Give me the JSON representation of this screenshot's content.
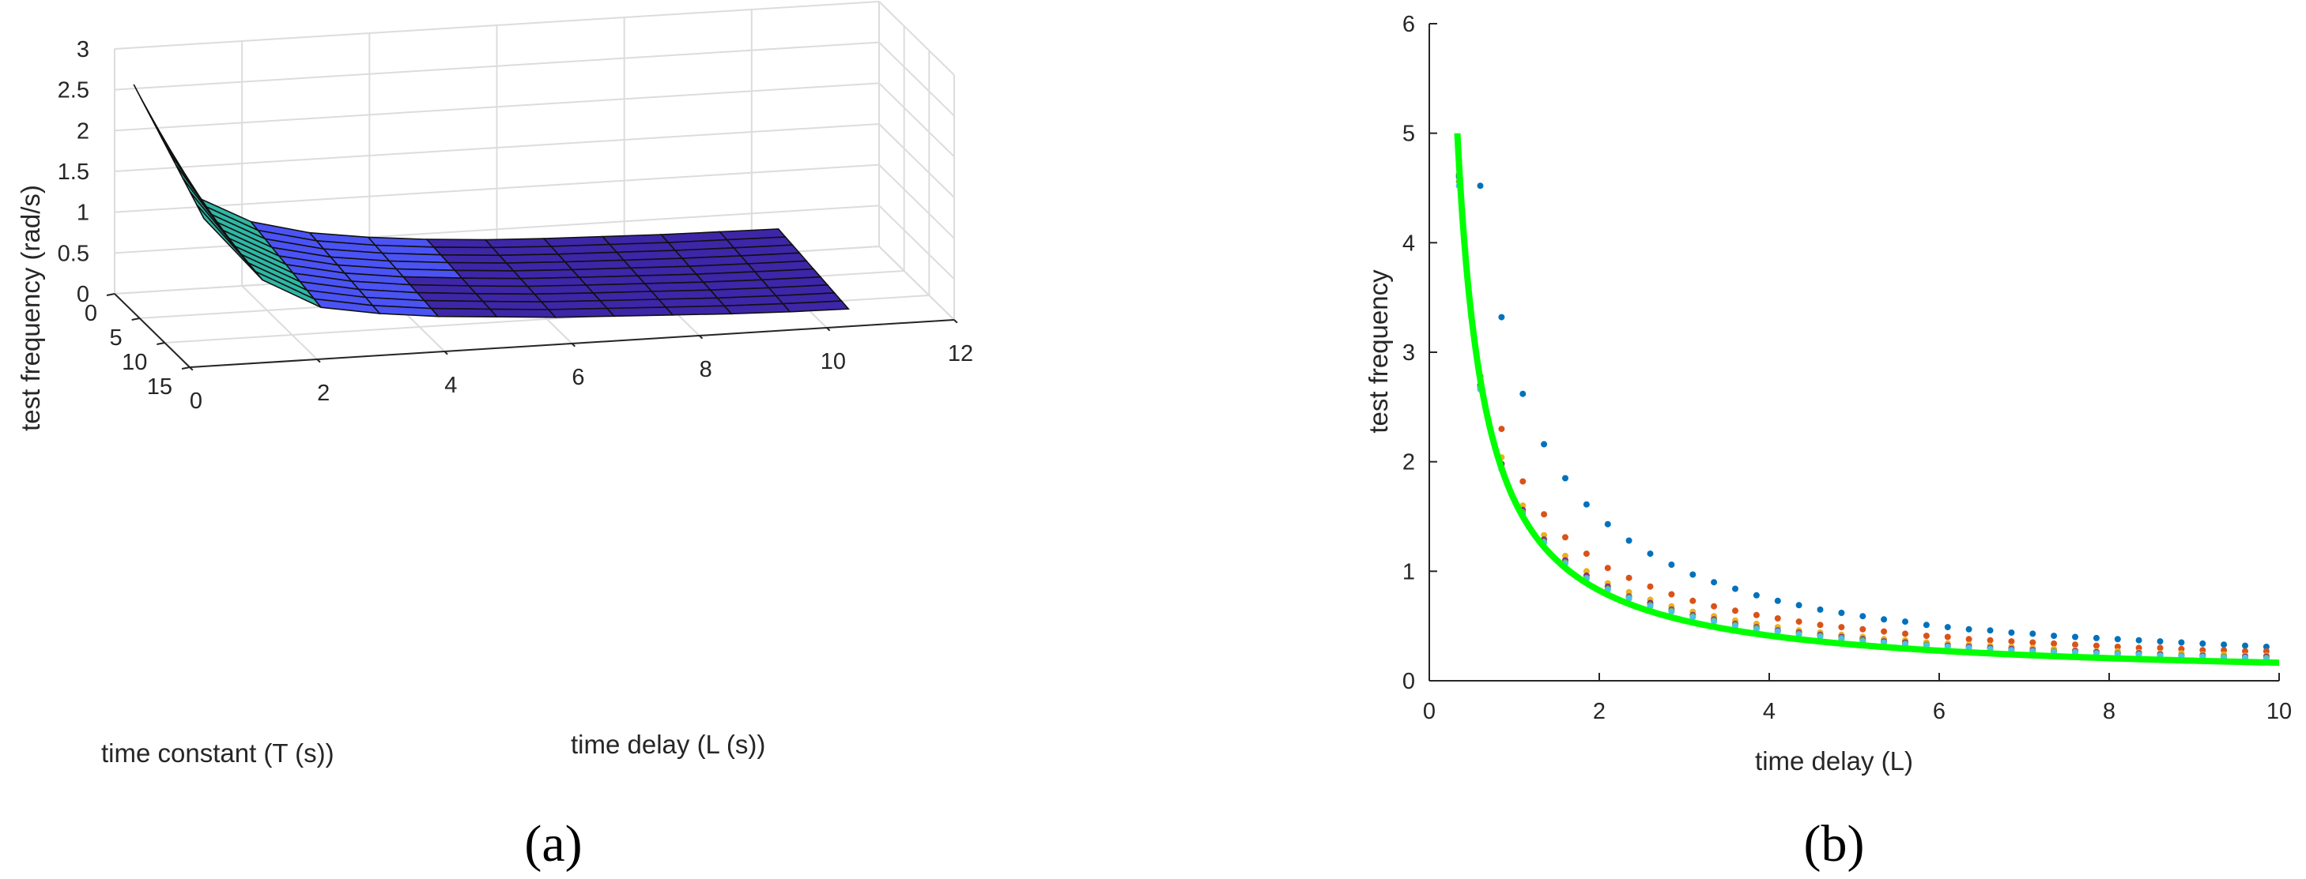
{
  "chart_data": [
    {
      "type": "surface",
      "caption": "(a)",
      "xlabel": "time delay (L (s))",
      "ylabel": "time constant (T (s))",
      "zlabel": "test frequency (rad/s)",
      "xlim": [
        0,
        12
      ],
      "ylim": [
        0,
        15
      ],
      "zlim": [
        0,
        3
      ],
      "xticks": [
        "0",
        "2",
        "4",
        "6",
        "8",
        "10",
        "12"
      ],
      "yticks": [
        "0",
        "5",
        "10",
        "15"
      ],
      "zticks": [
        "0",
        "0.5",
        "1",
        "1.5",
        "2",
        "2.5",
        "3"
      ],
      "grid": true,
      "colormap": [
        "#3e26a8",
        "#4b53f5",
        "#2eb7a4",
        "#f8fa0d"
      ],
      "surface": {
        "L": [
          0.3,
          1.22,
          2.14,
          3.06,
          3.98,
          4.9,
          5.82,
          6.74,
          7.66,
          8.58,
          9.5,
          10.42
        ],
        "T": [
          0,
          1.4,
          2.8,
          4.2,
          5.6,
          7.0,
          8.4,
          9.8,
          11.2,
          12.6,
          14.0
        ],
        "freq_at_T0": [
          2.55,
          1.15,
          0.78,
          0.6,
          0.5,
          0.43,
          0.38,
          0.35,
          0.33,
          0.31,
          0.3,
          0.29
        ],
        "freq_at_T14": [
          1.75,
          0.95,
          0.57,
          0.45,
          0.37,
          0.32,
          0.27,
          0.24,
          0.21,
          0.18,
          0.16,
          0.15
        ]
      }
    },
    {
      "type": "scatter",
      "caption": "(b)",
      "xlabel": "time delay (L)",
      "ylabel": "test frequency",
      "xlim": [
        0,
        10
      ],
      "ylim": [
        0,
        6
      ],
      "xticks": [
        "0",
        "2",
        "4",
        "6",
        "8",
        "10"
      ],
      "yticks": [
        "0",
        "1",
        "2",
        "3",
        "4",
        "5",
        "6"
      ],
      "x": [
        0.35,
        0.6,
        0.85,
        1.1,
        1.35,
        1.6,
        1.85,
        2.1,
        2.35,
        2.6,
        2.85,
        3.1,
        3.35,
        3.6,
        3.85,
        4.1,
        4.35,
        4.6,
        4.85,
        5.1,
        5.35,
        5.6,
        5.85,
        6.1,
        6.35,
        6.6,
        6.85,
        7.1,
        7.35,
        7.6,
        7.85,
        8.1,
        8.35,
        8.6,
        8.85,
        9.1,
        9.35,
        9.6,
        9.85
      ],
      "series": [
        {
          "color": "#0072bd",
          "values": [
            4.6,
            4.52,
            3.32,
            2.62,
            2.16,
            1.85,
            1.61,
            1.43,
            1.28,
            1.16,
            1.06,
            0.97,
            0.9,
            0.84,
            0.78,
            0.73,
            0.69,
            0.65,
            0.62,
            0.59,
            0.56,
            0.54,
            0.51,
            0.49,
            0.47,
            0.46,
            0.44,
            0.43,
            0.41,
            0.4,
            0.39,
            0.38,
            0.37,
            0.36,
            0.35,
            0.34,
            0.33,
            0.32,
            0.31
          ]
        },
        {
          "color": "#d95319",
          "values": [
            4.75,
            2.78,
            2.3,
            1.82,
            1.52,
            1.31,
            1.16,
            1.03,
            0.94,
            0.86,
            0.79,
            0.73,
            0.68,
            0.64,
            0.6,
            0.57,
            0.54,
            0.51,
            0.49,
            0.47,
            0.45,
            0.43,
            0.41,
            0.4,
            0.38,
            0.37,
            0.36,
            0.35,
            0.34,
            0.33,
            0.32,
            0.31,
            0.3,
            0.3,
            0.29,
            0.28,
            0.28,
            0.27,
            0.27
          ]
        },
        {
          "color": "#edb120",
          "values": [
            4.7,
            2.74,
            2.04,
            1.6,
            1.33,
            1.14,
            1.0,
            0.89,
            0.81,
            0.74,
            0.68,
            0.63,
            0.59,
            0.55,
            0.52,
            0.49,
            0.46,
            0.44,
            0.42,
            0.4,
            0.38,
            0.37,
            0.35,
            0.34,
            0.33,
            0.32,
            0.31,
            0.3,
            0.29,
            0.28,
            0.27,
            0.27,
            0.26,
            0.25,
            0.25,
            0.24,
            0.24,
            0.23,
            0.23
          ]
        },
        {
          "color": "#7e2f8e",
          "values": [
            4.62,
            2.7,
            1.98,
            1.56,
            1.29,
            1.1,
            0.96,
            0.86,
            0.77,
            0.71,
            0.65,
            0.6,
            0.56,
            0.52,
            0.49,
            0.46,
            0.44,
            0.42,
            0.4,
            0.38,
            0.36,
            0.35,
            0.33,
            0.32,
            0.31,
            0.3,
            0.29,
            0.28,
            0.27,
            0.27,
            0.26,
            0.25,
            0.25,
            0.24,
            0.23,
            0.23,
            0.22,
            0.22,
            0.22
          ]
        },
        {
          "color": "#77ac30",
          "values": [
            4.56,
            2.68,
            1.95,
            1.54,
            1.27,
            1.08,
            0.94,
            0.84,
            0.76,
            0.69,
            0.64,
            0.59,
            0.55,
            0.51,
            0.48,
            0.45,
            0.43,
            0.41,
            0.39,
            0.37,
            0.35,
            0.34,
            0.33,
            0.31,
            0.3,
            0.29,
            0.28,
            0.27,
            0.27,
            0.26,
            0.25,
            0.25,
            0.24,
            0.23,
            0.23,
            0.22,
            0.22,
            0.21,
            0.21
          ]
        },
        {
          "color": "#4dbeee",
          "values": [
            4.52,
            2.66,
            1.93,
            1.52,
            1.26,
            1.07,
            0.93,
            0.83,
            0.75,
            0.68,
            0.63,
            0.58,
            0.54,
            0.5,
            0.47,
            0.45,
            0.42,
            0.4,
            0.38,
            0.36,
            0.35,
            0.33,
            0.32,
            0.31,
            0.3,
            0.29,
            0.28,
            0.27,
            0.26,
            0.26,
            0.25,
            0.24,
            0.24,
            0.23,
            0.22,
            0.22,
            0.21,
            0.21,
            0.2
          ]
        }
      ],
      "fit_curve": {
        "color": "#00ff00",
        "formula": "1.65 / L",
        "x_start": 0.33,
        "x_end": 10
      }
    }
  ]
}
